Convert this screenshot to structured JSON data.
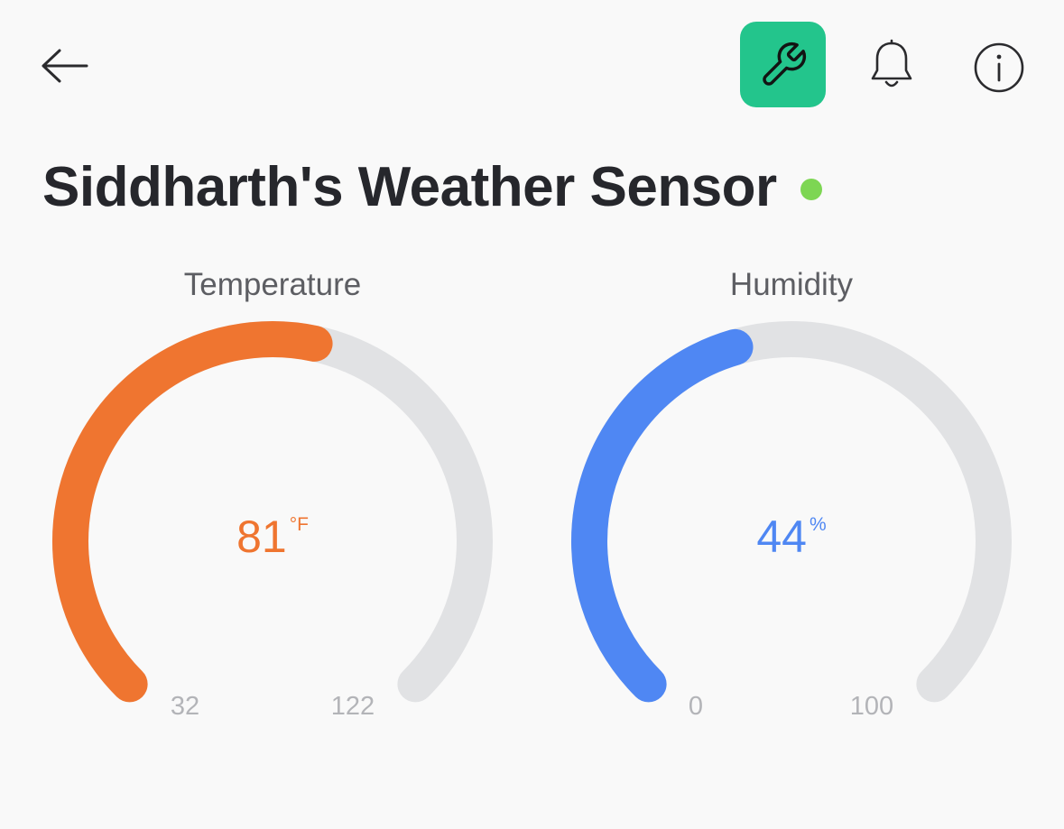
{
  "header": {
    "back_icon": "arrow-left-icon",
    "settings_icon": "wrench-icon",
    "settings_bg": "#23c58c",
    "notifications_icon": "bell-icon",
    "info_icon": "info-circle-icon"
  },
  "device": {
    "title": "Siddharth's Weather Sensor",
    "status_color": "#7dd653"
  },
  "gauges": {
    "temperature": {
      "label": "Temperature",
      "value": "81",
      "unit": "°F",
      "min": "32",
      "max": "122",
      "color": "#ef7530",
      "track_color": "#e1e2e4"
    },
    "humidity": {
      "label": "Humidity",
      "value": "44",
      "unit": "%",
      "min": "0",
      "max": "100",
      "color": "#4f87f3",
      "track_color": "#e1e2e4"
    }
  }
}
